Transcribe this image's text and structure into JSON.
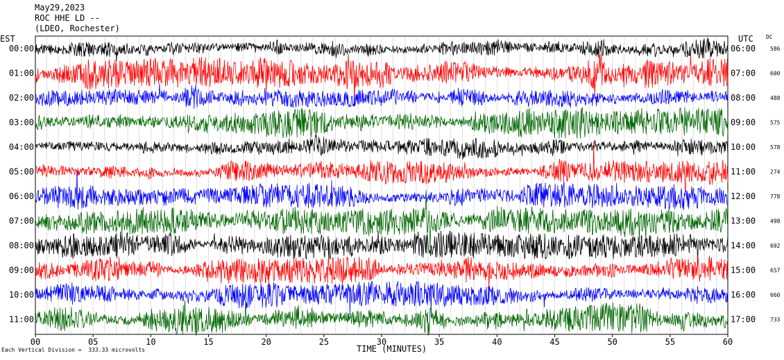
{
  "header": {
    "line1": "May29,2023",
    "line2": "ROC HHE LD --",
    "line3": "(LDEO, Rochester)"
  },
  "axis": {
    "left_title": "EST",
    "right_title": "UTC",
    "dc_title": "DC",
    "xlabel": "TIME (MINUTES)"
  },
  "footer": {
    "text": "Each Vertical Division =  333.33 microvolts"
  },
  "chart_data": {
    "type": "line",
    "title": "May29,2023 ROC HHE LD -- (LDEO, Rochester)",
    "xlabel": "TIME (MINUTES)",
    "xlim": [
      0,
      60
    ],
    "x_ticks": [
      "00",
      "05",
      "10",
      "15",
      "20",
      "25",
      "30",
      "35",
      "40",
      "45",
      "50",
      "55",
      "60"
    ],
    "grid": true,
    "color_cycle": [
      "#000000",
      "#ff0000",
      "#0000ff",
      "#006600"
    ],
    "series": [
      {
        "est": "00:00",
        "utc": "06:00",
        "dc": "586",
        "amplitude": 0.55
      },
      {
        "est": "01:00",
        "utc": "07:00",
        "dc": "600",
        "amplitude": 0.65
      },
      {
        "est": "02:00",
        "utc": "08:00",
        "dc": "488",
        "amplitude": 0.55
      },
      {
        "est": "03:00",
        "utc": "09:00",
        "dc": "575",
        "amplitude": 0.65
      },
      {
        "est": "04:00",
        "utc": "10:00",
        "dc": "578",
        "amplitude": 0.6
      },
      {
        "est": "05:00",
        "utc": "11:00",
        "dc": "274",
        "amplitude": 0.5
      },
      {
        "est": "06:00",
        "utc": "12:00",
        "dc": "778",
        "amplitude": 0.55
      },
      {
        "est": "07:00",
        "utc": "13:00",
        "dc": "498",
        "amplitude": 0.6
      },
      {
        "est": "08:00",
        "utc": "14:00",
        "dc": "602",
        "amplitude": 0.55
      },
      {
        "est": "09:00",
        "utc": "15:00",
        "dc": "657",
        "amplitude": 0.6
      },
      {
        "est": "10:00",
        "utc": "16:00",
        "dc": "660",
        "amplitude": 0.55
      },
      {
        "est": "11:00",
        "utc": "17:00",
        "dc": "733",
        "amplitude": 0.65
      }
    ]
  }
}
